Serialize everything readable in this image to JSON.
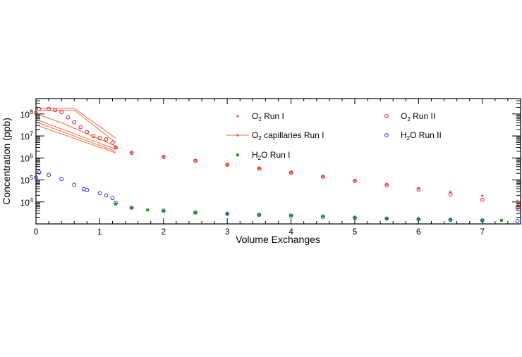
{
  "chart_data": {
    "type": "scatter",
    "xlabel": "Volume Exchanges",
    "ylabel": "Concentration (ppb)",
    "y_scale": "log",
    "xlim": [
      0,
      7.6
    ],
    "ylim": [
      1000,
      500000000
    ],
    "x_ticks": [
      0,
      1,
      2,
      3,
      4,
      5,
      6,
      7
    ],
    "y_ticks": [
      {
        "value": 10000,
        "base": "10",
        "exp": "4"
      },
      {
        "value": 100000,
        "base": "10",
        "exp": "5"
      },
      {
        "value": 1000000,
        "base": "10",
        "exp": "6"
      },
      {
        "value": 10000000,
        "base": "10",
        "exp": "7"
      },
      {
        "value": 100000000,
        "base": "10",
        "exp": "8"
      }
    ],
    "grid": false,
    "legend": [
      {
        "key": "o2_run1",
        "pre": "O",
        "sub": "2",
        "post": " Run I"
      },
      {
        "key": "o2_run2",
        "pre": "O",
        "sub": "2",
        "post": " Run II"
      },
      {
        "key": "o2_cap",
        "pre": "O",
        "sub": "2",
        "post": " capillaries Run I"
      },
      {
        "key": "h2o_run2",
        "pre": "H",
        "sub": "2",
        "post": "O Run II"
      },
      {
        "key": "h2o_run1",
        "pre": "H",
        "sub": "2",
        "post": "O Run I"
      }
    ],
    "colors": {
      "o2_run1": "#f26c3a",
      "o2_run2": "#e8141c",
      "o2_cap": "#f26c3a",
      "h2o_run2": "#1f2ee0",
      "h2o_run1": "#1a9e1a"
    },
    "series": [
      {
        "key": "o2_run1",
        "marker": "dot",
        "x": [
          1.25,
          1.5,
          2.0,
          2.5,
          3.0,
          3.5,
          4.0,
          4.5,
          5.0,
          5.5,
          6.0,
          6.5,
          7.0,
          7.55
        ],
        "y": [
          3000000,
          1800000,
          1150000,
          760000,
          500000,
          330000,
          220000,
          145000,
          95000,
          63000,
          42000,
          28000,
          19000,
          11000
        ]
      },
      {
        "key": "o2_run2",
        "marker": "open-circle",
        "x": [
          0,
          0.05,
          0.2,
          0.3,
          0.4,
          0.5,
          0.6,
          0.7,
          0.8,
          0.9,
          1.0,
          1.1,
          1.2,
          1.25,
          1.5,
          2.0,
          2.5,
          3.0,
          3.5,
          4.0,
          4.5,
          5.0,
          5.5,
          6.0,
          6.5,
          7.0,
          7.55
        ],
        "y": [
          110000000,
          170000000,
          170000000,
          150000000,
          120000000,
          70000000,
          42000000,
          25000000,
          15000000,
          10000000,
          8000000,
          7000000,
          5000000,
          3000000,
          1700000,
          1100000,
          740000,
          490000,
          330000,
          215000,
          140000,
          90000,
          58000,
          37000,
          22000,
          12500,
          5500
        ]
      },
      {
        "key": "h2o_run2",
        "marker": "open-circle",
        "x": [
          0,
          0.05,
          0.2,
          0.4,
          0.6,
          0.75,
          0.8,
          1.0,
          1.1,
          1.2,
          1.25,
          1.5,
          2.0,
          2.5,
          3.0,
          3.5,
          4.0,
          4.5,
          5.0,
          5.5,
          6.0,
          6.5,
          7.0,
          7.55
        ],
        "y": [
          130000,
          220000,
          170000,
          110000,
          60000,
          38000,
          35000,
          25000,
          20000,
          15000,
          9000,
          5500,
          4000,
          3300,
          2900,
          2600,
          2400,
          2100,
          1900,
          1750,
          1650,
          1550,
          1450,
          1350
        ]
      },
      {
        "key": "h2o_run1",
        "marker": "square",
        "x": [
          1.25,
          1.5,
          1.75,
          2.0,
          2.5,
          3.0,
          3.5,
          4.0,
          4.5,
          5.0,
          5.5,
          6.0,
          6.5,
          7.0,
          7.3
        ],
        "y": [
          8000,
          5200,
          4300,
          3800,
          3200,
          2900,
          2700,
          2500,
          2300,
          2000,
          1800,
          1700,
          1600,
          1500,
          1450
        ]
      }
    ],
    "capillary_lines": [
      {
        "x": [
          0.05,
          0.6,
          1.25
        ],
        "y": [
          180000000,
          180000000,
          8000000
        ]
      },
      {
        "x": [
          0.05,
          0.6,
          1.25
        ],
        "y": [
          150000000,
          150000000,
          5000000
        ]
      },
      {
        "x": [
          0.05,
          0.4,
          1.25
        ],
        "y": [
          90000000,
          40000000,
          3500000
        ]
      },
      {
        "x": [
          0.05,
          1.25
        ],
        "y": [
          50000000,
          2500000
        ]
      },
      {
        "x": [
          0.05,
          1.25
        ],
        "y": [
          38000000,
          2000000
        ]
      },
      {
        "x": [
          0.05,
          1.25
        ],
        "y": [
          28000000,
          1700000
        ]
      }
    ]
  }
}
